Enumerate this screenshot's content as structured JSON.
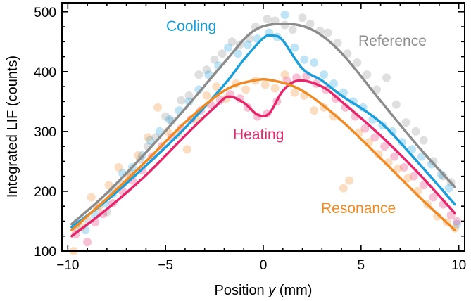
{
  "chart_data": {
    "type": "line",
    "title": "",
    "xlabel_prefix": "Position ",
    "xlabel_var": "y",
    "xlabel_suffix": " (mm)",
    "ylabel": "Integrated LIF (counts)",
    "xlim": [
      -10.3,
      10.3
    ],
    "ylim": [
      100,
      515
    ],
    "xticks": [
      -10,
      -5,
      0,
      5,
      10
    ],
    "xtick_labels": [
      "−10",
      "−5",
      "0",
      "5",
      "10"
    ],
    "yticks": [
      100,
      200,
      300,
      400,
      500
    ],
    "ytick_labels": [
      "100",
      "200",
      "300",
      "400",
      "500"
    ],
    "series": [
      {
        "name": "Reference",
        "color": "#8c8c8c",
        "fit_x": [
          -9.8,
          -8,
          -6,
          -4,
          -2,
          -0.5,
          1,
          2.5,
          4,
          6,
          8,
          9.8
        ],
        "fit_y": [
          145,
          197,
          265,
          338,
          415,
          468,
          480,
          470,
          431,
          351,
          272,
          207
        ],
        "points": [
          [
            -9.6,
            140
          ],
          [
            -9.0,
            152
          ],
          [
            -8.5,
            172
          ],
          [
            -8.0,
            165
          ],
          [
            -7.6,
            205
          ],
          [
            -7.2,
            212
          ],
          [
            -6.8,
            230
          ],
          [
            -6.3,
            253
          ],
          [
            -5.9,
            275
          ],
          [
            -5.5,
            290
          ],
          [
            -5.0,
            325
          ],
          [
            -4.7,
            318
          ],
          [
            -4.2,
            352
          ],
          [
            -3.8,
            360
          ],
          [
            -3.3,
            395
          ],
          [
            -2.9,
            403
          ],
          [
            -2.5,
            420
          ],
          [
            -2.1,
            430
          ],
          [
            -1.6,
            450
          ],
          [
            -1.2,
            445
          ],
          [
            -0.7,
            455
          ],
          [
            -0.4,
            475
          ],
          [
            0.2,
            488
          ],
          [
            0.6,
            485
          ],
          [
            1.1,
            478
          ],
          [
            1.5,
            470
          ],
          [
            2.0,
            490
          ],
          [
            2.4,
            480
          ],
          [
            2.9,
            468
          ],
          [
            3.3,
            465
          ],
          [
            3.8,
            448
          ],
          [
            4.3,
            430
          ],
          [
            4.8,
            415
          ],
          [
            5.3,
            395
          ],
          [
            5.8,
            370
          ],
          [
            6.3,
            390
          ],
          [
            6.8,
            345
          ],
          [
            7.3,
            315
          ],
          [
            7.8,
            300
          ],
          [
            8.2,
            285
          ],
          [
            8.7,
            250
          ],
          [
            9.2,
            225
          ],
          [
            9.6,
            215
          ]
        ]
      },
      {
        "name": "Cooling",
        "color": "#1a9fdb",
        "fit_x": [
          -9.8,
          -8,
          -6,
          -4,
          -2,
          -1,
          0,
          0.5,
          1,
          2,
          3,
          4,
          6,
          8,
          9.8
        ],
        "fit_y": [
          140,
          185,
          243,
          306,
          378,
          420,
          456,
          460,
          452,
          405,
          385,
          360,
          315,
          245,
          178
        ],
        "points": [
          [
            -9.5,
            148
          ],
          [
            -9.1,
            135
          ],
          [
            -8.6,
            160
          ],
          [
            -8.1,
            180
          ],
          [
            -7.7,
            195
          ],
          [
            -7.2,
            230
          ],
          [
            -6.7,
            240
          ],
          [
            -6.2,
            260
          ],
          [
            -5.8,
            285
          ],
          [
            -5.3,
            300
          ],
          [
            -4.8,
            320
          ],
          [
            -4.3,
            335
          ],
          [
            -3.8,
            350
          ],
          [
            -3.3,
            370
          ],
          [
            -2.8,
            395
          ],
          [
            -2.3,
            410
          ],
          [
            -1.8,
            440
          ],
          [
            -1.3,
            430
          ],
          [
            -0.8,
            445
          ],
          [
            -0.3,
            455
          ],
          [
            0.3,
            465
          ],
          [
            0.7,
            458
          ],
          [
            1.1,
            495
          ],
          [
            1.6,
            440
          ],
          [
            2.1,
            420
          ],
          [
            2.6,
            415
          ],
          [
            3.1,
            395
          ],
          [
            3.6,
            380
          ],
          [
            4.1,
            365
          ],
          [
            4.6,
            350
          ],
          [
            5.1,
            340
          ],
          [
            5.6,
            320
          ],
          [
            6.1,
            310
          ],
          [
            6.6,
            300
          ],
          [
            7.1,
            282
          ],
          [
            7.6,
            270
          ],
          [
            8.1,
            258
          ],
          [
            8.6,
            245
          ],
          [
            9.1,
            228
          ],
          [
            9.5,
            205
          ],
          [
            9.9,
            145
          ]
        ]
      },
      {
        "name": "Heating",
        "color": "#e6256b",
        "fit_x": [
          -9.8,
          -8,
          -6,
          -4,
          -2.5,
          -1.8,
          -1,
          -0.3,
          0.3,
          1,
          1.8,
          3,
          4,
          6,
          8,
          9.8
        ],
        "fit_y": [
          125,
          170,
          227,
          293,
          340,
          358,
          348,
          328,
          330,
          368,
          385,
          375,
          350,
          293,
          228,
          163
        ],
        "points": [
          [
            -9.6,
            128
          ],
          [
            -9.0,
            115
          ],
          [
            -8.6,
            148
          ],
          [
            -8.2,
            162
          ],
          [
            -7.7,
            180
          ],
          [
            -7.2,
            200
          ],
          [
            -6.7,
            218
          ],
          [
            -6.2,
            235
          ],
          [
            -5.7,
            258
          ],
          [
            -5.2,
            275
          ],
          [
            -4.7,
            290
          ],
          [
            -4.2,
            305
          ],
          [
            -3.7,
            320
          ],
          [
            -3.2,
            335
          ],
          [
            -2.7,
            345
          ],
          [
            -2.2,
            352
          ],
          [
            -1.7,
            362
          ],
          [
            -1.2,
            355
          ],
          [
            -0.8,
            340
          ],
          [
            -0.3,
            325
          ],
          [
            0.2,
            330
          ],
          [
            0.7,
            350
          ],
          [
            1.2,
            385
          ],
          [
            1.7,
            390
          ],
          [
            2.2,
            392
          ],
          [
            2.7,
            380
          ],
          [
            3.2,
            370
          ],
          [
            3.7,
            355
          ],
          [
            4.2,
            340
          ],
          [
            4.7,
            325
          ],
          [
            5.2,
            305
          ],
          [
            5.7,
            290
          ],
          [
            6.2,
            275
          ],
          [
            6.7,
            258
          ],
          [
            7.2,
            240
          ],
          [
            7.7,
            225
          ],
          [
            8.2,
            210
          ],
          [
            8.7,
            190
          ],
          [
            9.2,
            178
          ],
          [
            9.6,
            160
          ],
          [
            9.9,
            150
          ]
        ]
      },
      {
        "name": "Resonance",
        "color": "#f08a24",
        "fit_x": [
          -9.8,
          -8,
          -6,
          -4,
          -2,
          -0.5,
          0.5,
          2,
          4,
          6,
          8,
          9.8
        ],
        "fit_y": [
          135,
          188,
          250,
          315,
          368,
          385,
          385,
          368,
          318,
          255,
          190,
          135
        ],
        "points": [
          [
            -9.7,
            100
          ],
          [
            -9.3,
            140
          ],
          [
            -8.8,
            190
          ],
          [
            -8.4,
            175
          ],
          [
            -7.9,
            210
          ],
          [
            -7.4,
            240
          ],
          [
            -6.9,
            225
          ],
          [
            -6.4,
            260
          ],
          [
            -5.9,
            290
          ],
          [
            -5.4,
            340
          ],
          [
            -4.9,
            300
          ],
          [
            -4.4,
            295
          ],
          [
            -3.9,
            270
          ],
          [
            -3.4,
            320
          ],
          [
            -2.9,
            360
          ],
          [
            -2.4,
            375
          ],
          [
            -1.9,
            355
          ],
          [
            -1.4,
            380
          ],
          [
            -0.9,
            370
          ],
          [
            -0.4,
            385
          ],
          [
            0.1,
            378
          ],
          [
            0.6,
            372
          ],
          [
            1.1,
            395
          ],
          [
            1.6,
            365
          ],
          [
            2.1,
            360
          ],
          [
            2.6,
            335
          ],
          [
            3.1,
            340
          ],
          [
            3.6,
            325
          ],
          [
            4.1,
            205
          ],
          [
            4.4,
            218
          ],
          [
            4.9,
            298
          ],
          [
            5.4,
            282
          ],
          [
            5.9,
            262
          ],
          [
            6.4,
            248
          ],
          [
            6.9,
            238
          ],
          [
            7.4,
            222
          ],
          [
            7.9,
            200
          ],
          [
            8.4,
            178
          ],
          [
            8.9,
            158
          ],
          [
            9.4,
            148
          ],
          [
            9.8,
            138
          ]
        ]
      }
    ],
    "labels": [
      {
        "text": "Cooling",
        "color": "#1a9fdb"
      },
      {
        "text": "Reference",
        "color": "#8c8c8c"
      },
      {
        "text": "Heating",
        "color": "#e6256b"
      },
      {
        "text": "Resonance",
        "color": "#f08a24"
      }
    ]
  }
}
